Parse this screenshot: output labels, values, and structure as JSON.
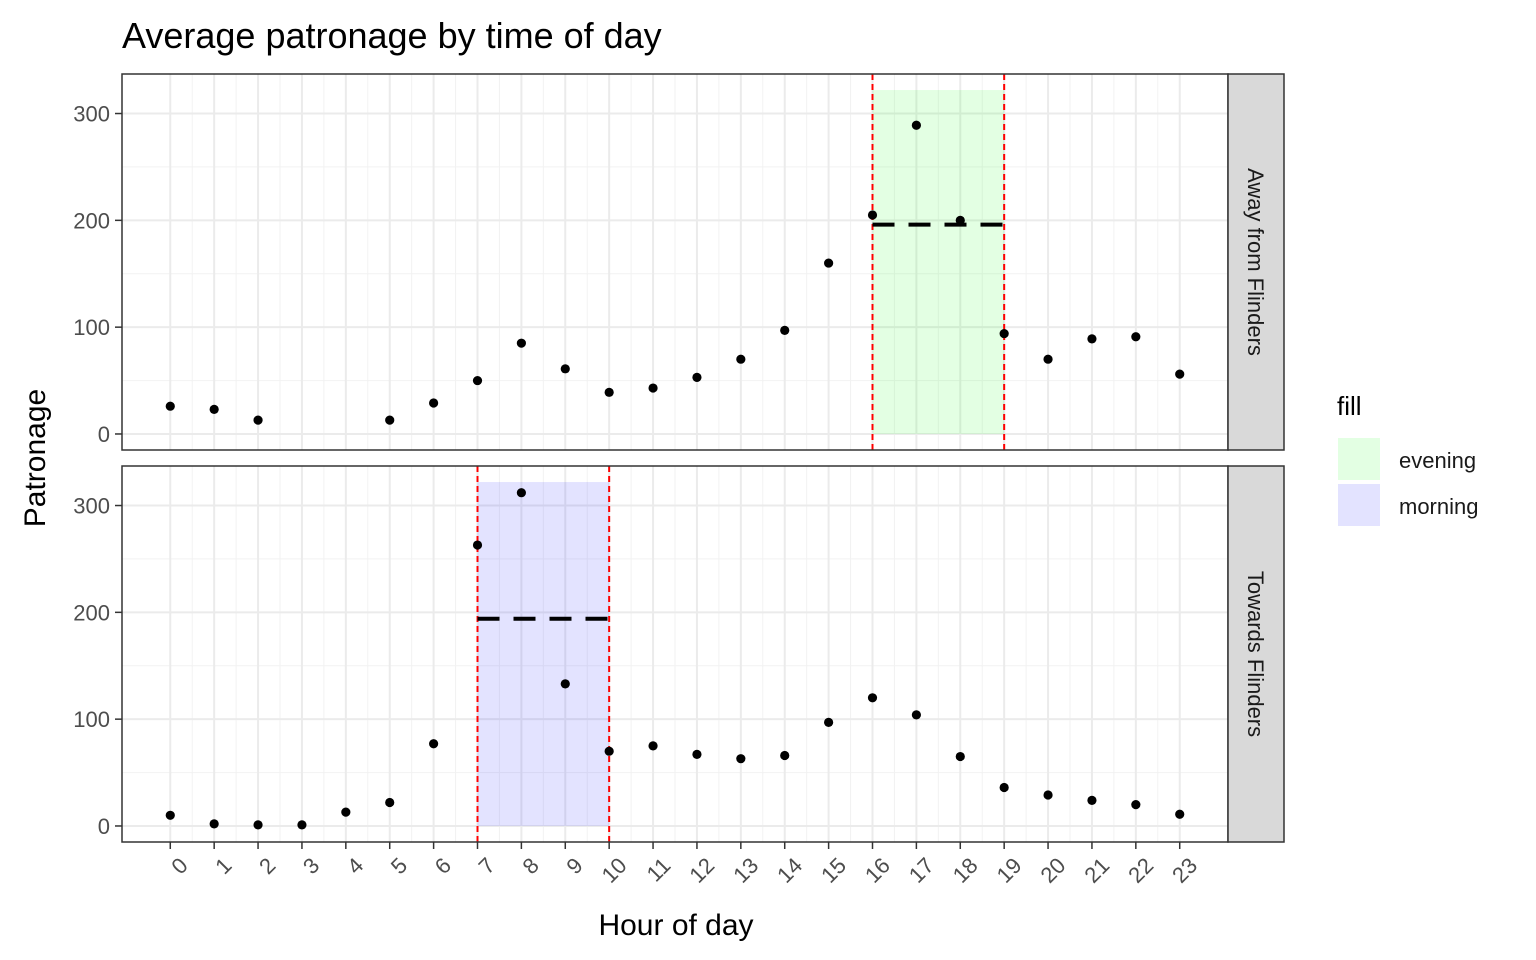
{
  "chart_data": {
    "type": "scatter",
    "title": "Average patronage by time of day",
    "xlabel": "Hour of day",
    "ylabel": "Patronage",
    "x_ticks": [
      0,
      1,
      2,
      3,
      4,
      5,
      6,
      7,
      8,
      9,
      10,
      11,
      12,
      13,
      14,
      15,
      16,
      17,
      18,
      19,
      20,
      21,
      22,
      23
    ],
    "xlim": [
      -1.1,
      24.1
    ],
    "ylim": [
      -15,
      337
    ],
    "y_ticks": [
      0,
      100,
      200,
      300
    ],
    "grid": true,
    "colors": {
      "evening": "#00ff00",
      "morning": "#0000ff",
      "vline": "#ff0000",
      "mean_line": "#000000",
      "points": "#000000"
    },
    "legend": {
      "title": "fill",
      "position": "right",
      "entries": [
        {
          "label": "evening",
          "color": "#00ff00"
        },
        {
          "label": "morning",
          "color": "#0000ff"
        }
      ]
    },
    "panels": [
      {
        "facet": "Away from Flinders",
        "hours": [
          0,
          1,
          2,
          5,
          6,
          7,
          8,
          9,
          10,
          11,
          12,
          13,
          14,
          15,
          16,
          17,
          18,
          19,
          20,
          21,
          22,
          23
        ],
        "values": [
          26,
          23,
          13,
          13,
          29,
          50,
          85,
          61,
          39,
          43,
          53,
          70,
          97,
          160,
          205,
          289,
          200,
          94,
          70,
          89,
          91,
          56
        ],
        "band": {
          "fill": "evening",
          "x": [
            16,
            19
          ],
          "y": [
            0,
            322
          ]
        },
        "vlines": [
          16,
          19
        ],
        "mean": {
          "x": [
            16,
            19
          ],
          "y": 196
        }
      },
      {
        "facet": "Towards Flinders",
        "hours": [
          0,
          1,
          2,
          3,
          4,
          5,
          6,
          7,
          8,
          9,
          10,
          11,
          12,
          13,
          14,
          15,
          16,
          17,
          18,
          19,
          20,
          21,
          22,
          23
        ],
        "values": [
          10,
          2,
          1,
          1,
          13,
          22,
          77,
          263,
          312,
          133,
          70,
          75,
          67,
          63,
          66,
          97,
          120,
          104,
          65,
          36,
          29,
          24,
          20,
          11
        ],
        "band": {
          "fill": "morning",
          "x": [
            7,
            10
          ],
          "y": [
            0,
            322
          ]
        },
        "vlines": [
          7,
          10
        ],
        "mean": {
          "x": [
            7,
            10
          ],
          "y": 194
        }
      }
    ]
  }
}
